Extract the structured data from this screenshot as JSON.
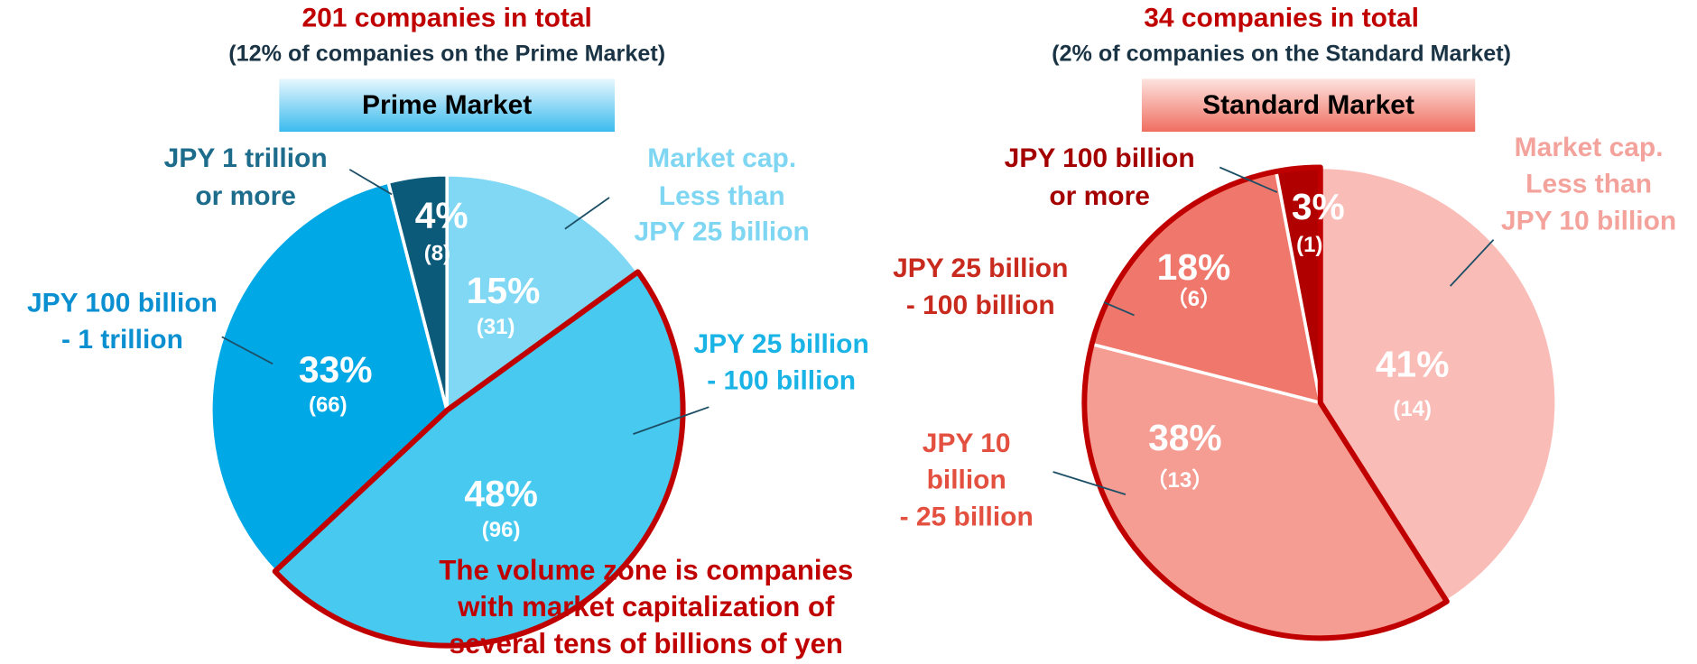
{
  "chart_data": [
    {
      "type": "pie",
      "title": "201 companies in total",
      "subtitle": "(12% of companies on the Prime Market)",
      "header": "Prime Market",
      "header_colors": [
        "#e6f7fd",
        "#3bbbee"
      ],
      "categories": [
        [
          "Market cap.",
          "Less than",
          "JPY 25 billion"
        ],
        [
          "JPY 25 billion",
          "- 100 billion"
        ],
        [
          "JPY 100 billion",
          "- 1 trillion"
        ],
        [
          "JPY 1 trillion",
          "or more"
        ]
      ],
      "values": [
        15,
        48,
        33,
        4
      ],
      "value_labels": [
        "15%",
        "48%",
        "33%",
        "4%"
      ],
      "counts": [
        31,
        96,
        66,
        8
      ],
      "count_labels": [
        "(31)",
        "(96)",
        "(66)",
        "(8)"
      ],
      "colors": [
        "#80d8f4",
        "#48c9ef",
        "#00a8e5",
        "#0b5a7a"
      ],
      "label_colors": [
        "#7fd6f2",
        "#1ab3e6",
        "#0a8fd0",
        "#1d6c8c"
      ],
      "highlight": [
        1
      ],
      "highlight_color": "#c00000",
      "annotation": [
        "The volume zone is companies",
        "with market capitalization of",
        "several tens of billions of yen"
      ]
    },
    {
      "type": "pie",
      "title": "34 companies in total",
      "subtitle": "(2% of companies on the Standard Market)",
      "header": "Standard Market",
      "header_colors": [
        "#fde3df",
        "#ef6e60"
      ],
      "categories": [
        [
          "Market cap.",
          "Less than",
          "JPY 10 billion"
        ],
        [
          "JPY 10",
          "billion",
          "- 25 billion"
        ],
        [
          "JPY 25 billion",
          "- 100 billion"
        ],
        [
          "JPY 100 billion",
          "or more"
        ]
      ],
      "values": [
        41,
        38,
        18,
        3
      ],
      "value_labels": [
        "41%",
        "38%",
        "18%",
        "3%"
      ],
      "counts": [
        14,
        13,
        6,
        1
      ],
      "count_labels": [
        "(14)",
        "（13）",
        "（6）",
        "(1)"
      ],
      "colors": [
        "#f9bcb7",
        "#f59c93",
        "#f0776b",
        "#b00000"
      ],
      "label_colors": [
        "#f4a39c",
        "#e4503f",
        "#c92a1e",
        "#a40000"
      ],
      "highlight": [
        1,
        2,
        3
      ],
      "highlight_color": "#c00000"
    }
  ]
}
